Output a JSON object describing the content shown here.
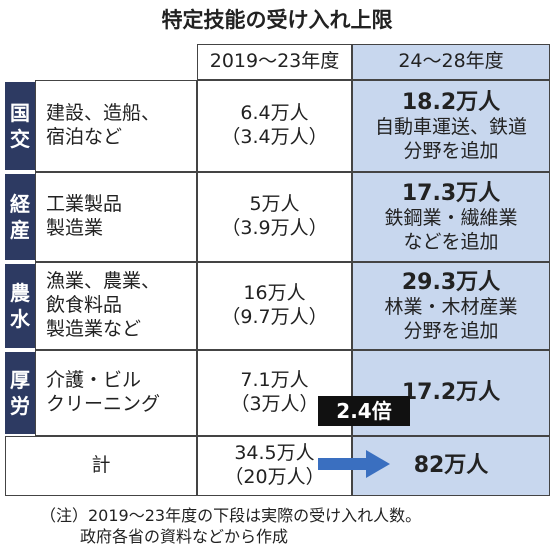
{
  "title": "特定技能の受け入れ上限",
  "header": {
    "period1": "2019〜23年度",
    "period2": "24〜28年度"
  },
  "rows": [
    {
      "ministry": [
        "国",
        "交"
      ],
      "category": [
        "建設、造船、",
        "宿泊など"
      ],
      "period1": [
        "6.4万人",
        "（3.4万人）"
      ],
      "period2": "18.2万人",
      "note": [
        "自動車運送、鉄道",
        "分野を追加"
      ]
    },
    {
      "ministry": [
        "経",
        "産"
      ],
      "category": [
        "工業製品",
        "製造業"
      ],
      "period1": [
        "5万人",
        "（3.9万人）"
      ],
      "period2": "17.3万人",
      "note": [
        "鉄鋼業・繊維業",
        "などを追加"
      ]
    },
    {
      "ministry": [
        "農",
        "水"
      ],
      "category": [
        "漁業、農業、",
        "飲食料品",
        "製造業など"
      ],
      "period1": [
        "16万人",
        "（9.7万人）"
      ],
      "period2": "29.3万人",
      "note": [
        "林業・木材産業",
        "分野を追加"
      ]
    },
    {
      "ministry": [
        "厚",
        "労"
      ],
      "category": [
        "介護・ビル",
        "クリーニング"
      ],
      "period1": [
        "7.1万人",
        "（3万人）"
      ],
      "period2": "17.2万人",
      "note": []
    }
  ],
  "total": {
    "label": "計",
    "period1": [
      "34.5万人",
      "（20万人）"
    ],
    "period2": "82万人",
    "ratio": "2.4倍"
  },
  "footnote": [
    "（注）2019〜23年度の下段は実際の受け入れ人数。",
    "政府各省の資料などから作成"
  ]
}
